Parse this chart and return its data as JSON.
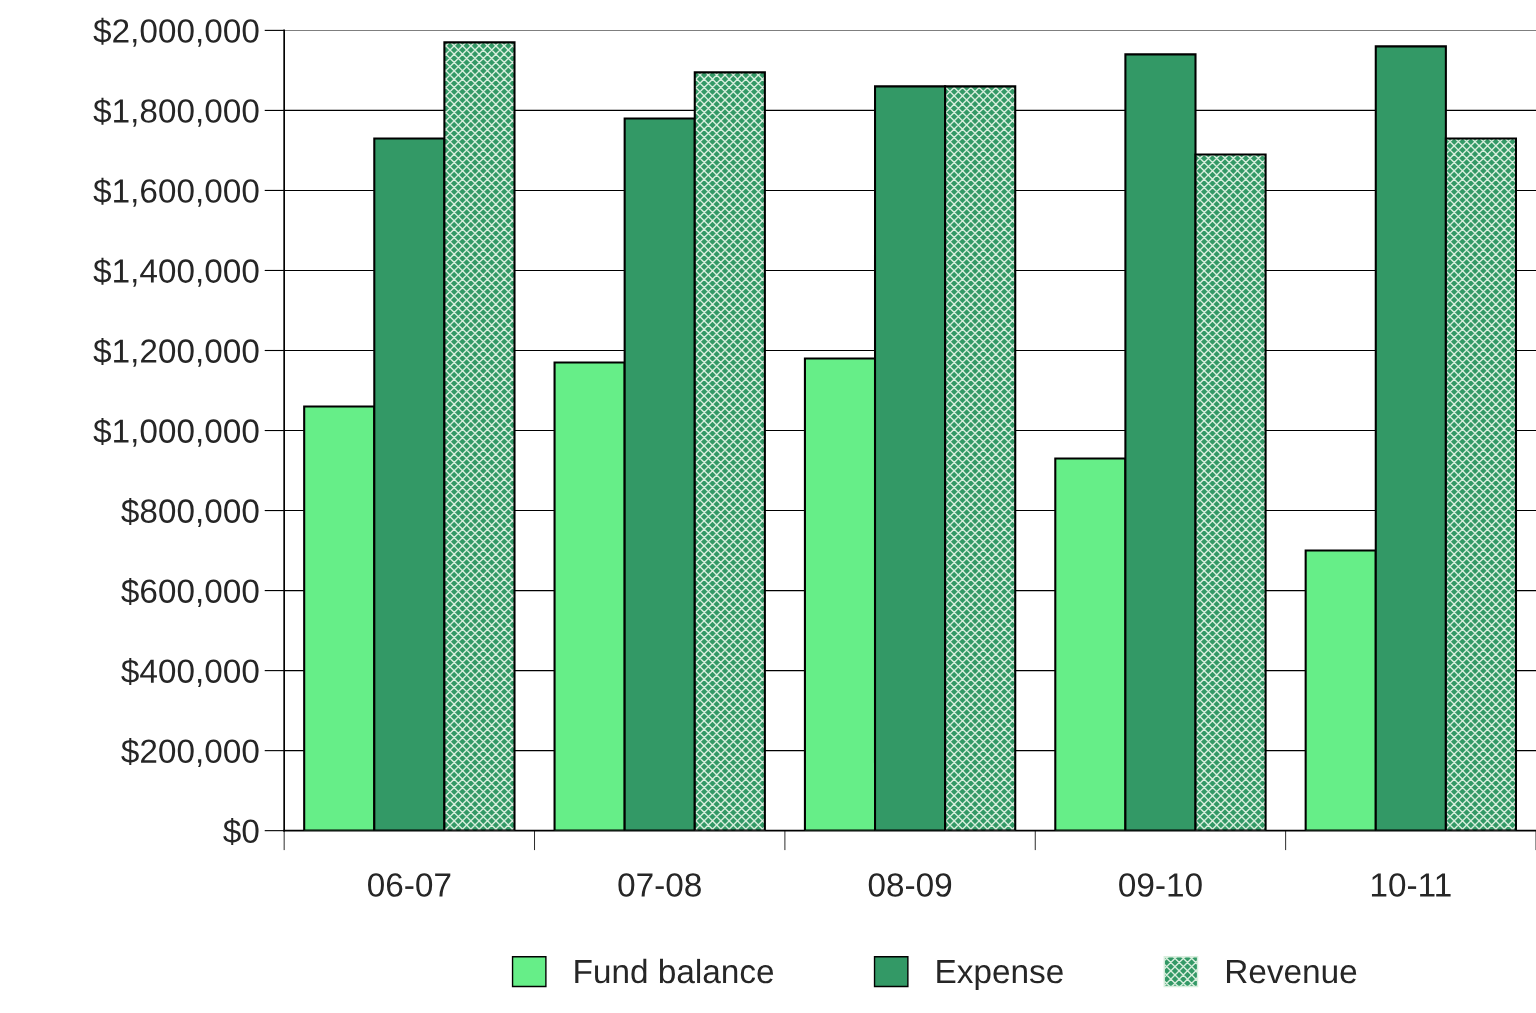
{
  "chart_data": {
    "type": "bar",
    "categories": [
      "06-07",
      "07-08",
      "08-09",
      "09-10",
      "10-11"
    ],
    "series": [
      {
        "name": "Fund balance",
        "color": "#66ee88",
        "values": [
          1060000,
          1170000,
          1180000,
          930000,
          700000
        ]
      },
      {
        "name": "Expense",
        "color": "#339966",
        "values": [
          1730000,
          1780000,
          1860000,
          1940000,
          1960000
        ]
      },
      {
        "name": "Revenue",
        "color": "#339966",
        "values": [
          1970000,
          1895000,
          1860000,
          1690000,
          1730000
        ]
      }
    ],
    "ylim": [
      0,
      2000000
    ],
    "yticks": [
      {
        "value": 0,
        "label": "$0"
      },
      {
        "value": 200000,
        "label": "$200,000"
      },
      {
        "value": 400000,
        "label": "$400,000"
      },
      {
        "value": 600000,
        "label": "$600,000"
      },
      {
        "value": 800000,
        "label": "$800,000"
      },
      {
        "value": 1000000,
        "label": "$1,000,000"
      },
      {
        "value": 1200000,
        "label": "$1,200,000"
      },
      {
        "value": 1400000,
        "label": "$1,400,000"
      },
      {
        "value": 1600000,
        "label": "$1,600,000"
      },
      {
        "value": 1800000,
        "label": "$1,800,000"
      },
      {
        "value": 2000000,
        "label": "$2,000,000"
      }
    ],
    "grid": "y",
    "legend": "bottom"
  }
}
